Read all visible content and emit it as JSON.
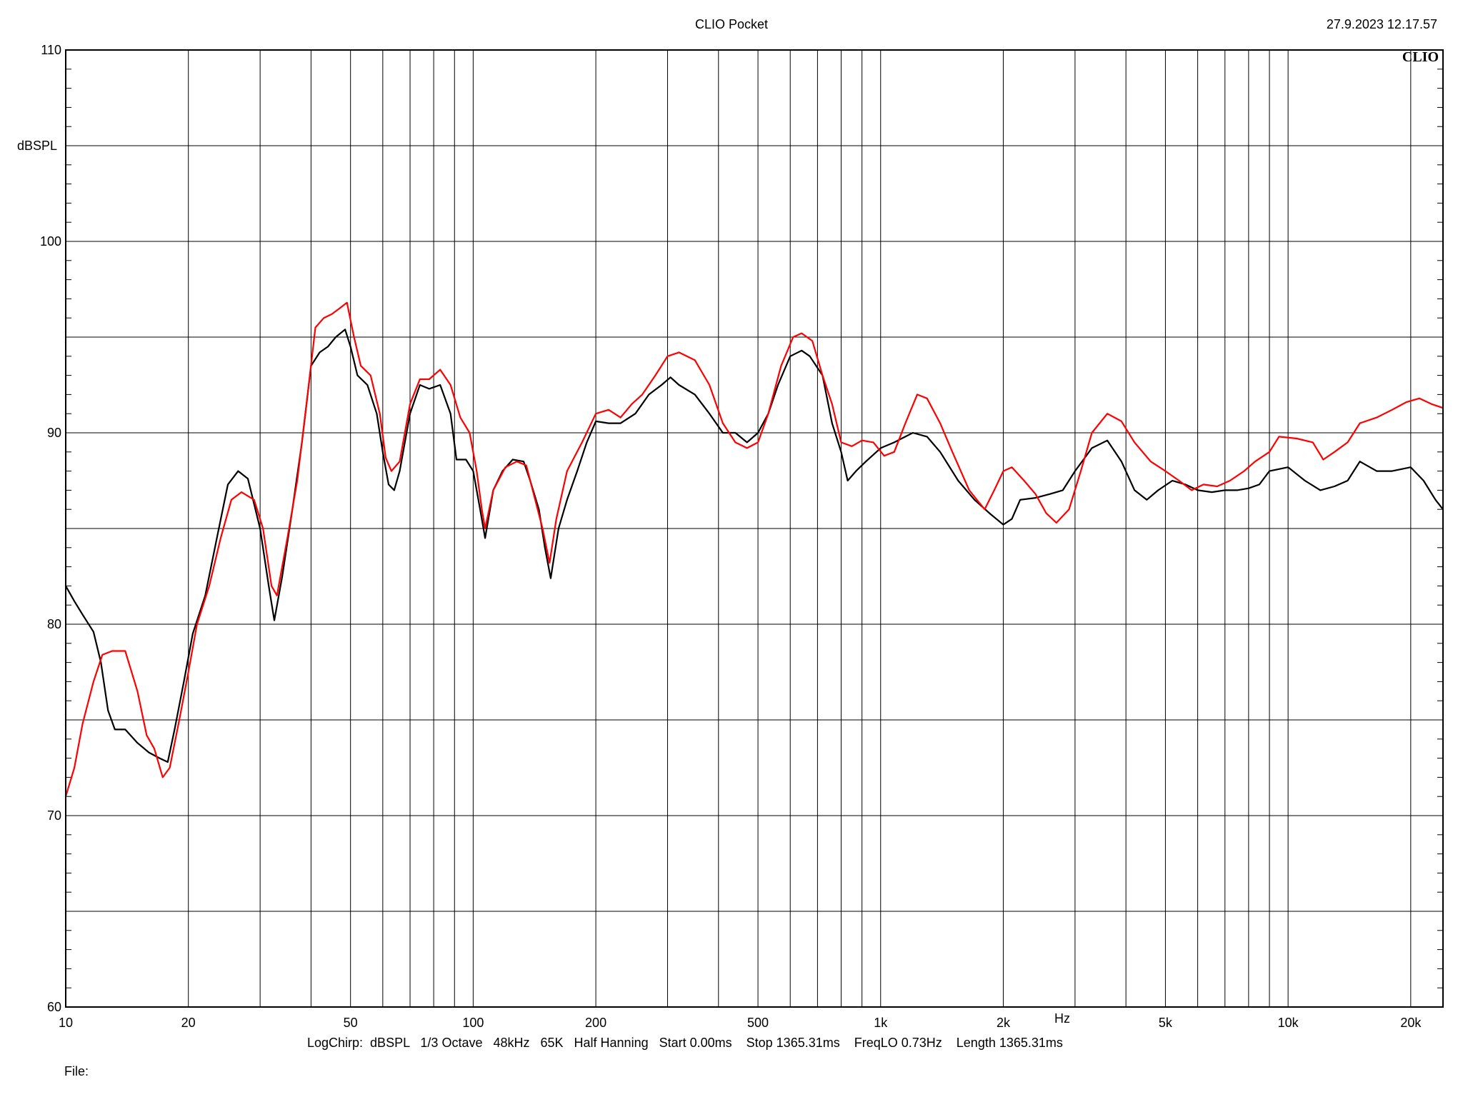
{
  "header": {
    "title": "CLIO Pocket",
    "timestamp": "27.9.2023 12.17.57",
    "logo": "CLIO"
  },
  "footer": {
    "settings": "LogChirp:  dBSPL   1/3 Octave   48kHz   65K   Half Hanning   Start 0.00ms    Stop 1365.31ms    FreqLO 0.73Hz    Length 1365.31ms",
    "file_label": "File:"
  },
  "colors": {
    "background": "#ffffff",
    "grid": "#000000",
    "series_black": "#000000",
    "series_red": "#ff0000"
  },
  "chart_data": {
    "type": "line",
    "xscale": "log",
    "xlim": [
      10,
      24000
    ],
    "ylim": [
      60,
      110
    ],
    "ylabel": "dBSPL",
    "xlabel": "Hz",
    "grid": true,
    "y_ticks": [
      "60",
      "70",
      "80",
      "90",
      "100",
      "110"
    ],
    "x_ticks": [
      {
        "value": 10,
        "label": "10"
      },
      {
        "value": 20,
        "label": "20"
      },
      {
        "value": 50,
        "label": "50"
      },
      {
        "value": 100,
        "label": "100"
      },
      {
        "value": 200,
        "label": "200"
      },
      {
        "value": 500,
        "label": "500"
      },
      {
        "value": 1000,
        "label": "1k"
      },
      {
        "value": 2000,
        "label": "2k"
      },
      {
        "value": 5000,
        "label": "5k"
      },
      {
        "value": 10000,
        "label": "10k"
      },
      {
        "value": 20000,
        "label": "20k"
      }
    ],
    "series": [
      {
        "color": "#000000",
        "points": [
          [
            10,
            82.0
          ],
          [
            10.5,
            81.2
          ],
          [
            11,
            80.5
          ],
          [
            11.7,
            79.6
          ],
          [
            12.2,
            78.0
          ],
          [
            12.7,
            75.5
          ],
          [
            13.2,
            74.5
          ],
          [
            14,
            74.5
          ],
          [
            15,
            73.8
          ],
          [
            16,
            73.3
          ],
          [
            17,
            73.0
          ],
          [
            17.8,
            72.8
          ],
          [
            18.5,
            74.5
          ],
          [
            19.5,
            77.0
          ],
          [
            20.5,
            79.5
          ],
          [
            22,
            81.5
          ],
          [
            23.5,
            84.5
          ],
          [
            25,
            87.3
          ],
          [
            26.5,
            88.0
          ],
          [
            28,
            87.6
          ],
          [
            30,
            85.0
          ],
          [
            31.5,
            82.0
          ],
          [
            32.5,
            80.2
          ],
          [
            34,
            82.5
          ],
          [
            36,
            86.0
          ],
          [
            38,
            89.5
          ],
          [
            40,
            93.5
          ],
          [
            42,
            94.2
          ],
          [
            44,
            94.5
          ],
          [
            46,
            95.0
          ],
          [
            48.5,
            95.4
          ],
          [
            50,
            94.5
          ],
          [
            52,
            93.0
          ],
          [
            55,
            92.5
          ],
          [
            58,
            91.0
          ],
          [
            60,
            89.0
          ],
          [
            62,
            87.3
          ],
          [
            64,
            87.0
          ],
          [
            66,
            88.0
          ],
          [
            70,
            91.0
          ],
          [
            74,
            92.5
          ],
          [
            78,
            92.3
          ],
          [
            83,
            92.5
          ],
          [
            88,
            91.0
          ],
          [
            91,
            88.6
          ],
          [
            96,
            88.6
          ],
          [
            100,
            88.0
          ],
          [
            104,
            86.0
          ],
          [
            107,
            84.5
          ],
          [
            112,
            87.0
          ],
          [
            118,
            88.0
          ],
          [
            125,
            88.6
          ],
          [
            133,
            88.5
          ],
          [
            138,
            87.5
          ],
          [
            145,
            86.0
          ],
          [
            150,
            84.0
          ],
          [
            155,
            82.4
          ],
          [
            162,
            85.0
          ],
          [
            170,
            86.5
          ],
          [
            180,
            88.0
          ],
          [
            190,
            89.5
          ],
          [
            200,
            90.6
          ],
          [
            215,
            90.5
          ],
          [
            230,
            90.5
          ],
          [
            250,
            91.0
          ],
          [
            270,
            92.0
          ],
          [
            290,
            92.5
          ],
          [
            305,
            92.9
          ],
          [
            320,
            92.5
          ],
          [
            350,
            92.0
          ],
          [
            380,
            91.0
          ],
          [
            410,
            90.0
          ],
          [
            440,
            90.0
          ],
          [
            470,
            89.5
          ],
          [
            500,
            90.0
          ],
          [
            530,
            91.0
          ],
          [
            560,
            92.5
          ],
          [
            600,
            94.0
          ],
          [
            640,
            94.3
          ],
          [
            670,
            94.0
          ],
          [
            720,
            93.0
          ],
          [
            760,
            90.5
          ],
          [
            800,
            89.0
          ],
          [
            830,
            87.5
          ],
          [
            870,
            88.0
          ],
          [
            920,
            88.5
          ],
          [
            1000,
            89.2
          ],
          [
            1080,
            89.5
          ],
          [
            1200,
            90.0
          ],
          [
            1300,
            89.8
          ],
          [
            1400,
            89.0
          ],
          [
            1550,
            87.5
          ],
          [
            1700,
            86.5
          ],
          [
            1850,
            85.8
          ],
          [
            2000,
            85.2
          ],
          [
            2100,
            85.5
          ],
          [
            2200,
            86.5
          ],
          [
            2400,
            86.6
          ],
          [
            2600,
            86.8
          ],
          [
            2800,
            87.0
          ],
          [
            3000,
            88.0
          ],
          [
            3300,
            89.2
          ],
          [
            3600,
            89.6
          ],
          [
            3900,
            88.5
          ],
          [
            4200,
            87.0
          ],
          [
            4500,
            86.5
          ],
          [
            4800,
            87.0
          ],
          [
            5200,
            87.5
          ],
          [
            5600,
            87.3
          ],
          [
            6000,
            87.0
          ],
          [
            6500,
            86.9
          ],
          [
            7000,
            87.0
          ],
          [
            7500,
            87.0
          ],
          [
            8000,
            87.1
          ],
          [
            8500,
            87.3
          ],
          [
            9000,
            88.0
          ],
          [
            10000,
            88.2
          ],
          [
            11000,
            87.5
          ],
          [
            12000,
            87.0
          ],
          [
            13000,
            87.2
          ],
          [
            14000,
            87.5
          ],
          [
            15000,
            88.5
          ],
          [
            16500,
            88.0
          ],
          [
            18000,
            88.0
          ],
          [
            20000,
            88.2
          ],
          [
            21500,
            87.5
          ],
          [
            23000,
            86.5
          ],
          [
            24000,
            86.0
          ]
        ]
      },
      {
        "color": "#ff0000",
        "points": [
          [
            10,
            71.0
          ],
          [
            10.5,
            72.5
          ],
          [
            11,
            74.8
          ],
          [
            11.7,
            77.0
          ],
          [
            12.3,
            78.4
          ],
          [
            13,
            78.6
          ],
          [
            14,
            78.6
          ],
          [
            15,
            76.5
          ],
          [
            15.8,
            74.2
          ],
          [
            16.5,
            73.5
          ],
          [
            17.3,
            72.0
          ],
          [
            18,
            72.5
          ],
          [
            19,
            75.0
          ],
          [
            20,
            77.5
          ],
          [
            21,
            80.0
          ],
          [
            22.5,
            82.0
          ],
          [
            24,
            84.5
          ],
          [
            25.5,
            86.5
          ],
          [
            27,
            86.9
          ],
          [
            29,
            86.5
          ],
          [
            30.5,
            85.0
          ],
          [
            32,
            82.0
          ],
          [
            33,
            81.5
          ],
          [
            35,
            84.5
          ],
          [
            37,
            87.5
          ],
          [
            39,
            91.5
          ],
          [
            41,
            95.5
          ],
          [
            43,
            96.0
          ],
          [
            45,
            96.2
          ],
          [
            47,
            96.5
          ],
          [
            49,
            96.8
          ],
          [
            51,
            95.0
          ],
          [
            53,
            93.5
          ],
          [
            56,
            93.0
          ],
          [
            59,
            91.0
          ],
          [
            61,
            88.7
          ],
          [
            63,
            88.0
          ],
          [
            66,
            88.5
          ],
          [
            70,
            91.5
          ],
          [
            74,
            92.8
          ],
          [
            78,
            92.8
          ],
          [
            83,
            93.3
          ],
          [
            88,
            92.5
          ],
          [
            93,
            90.8
          ],
          [
            98,
            90.0
          ],
          [
            102,
            88.0
          ],
          [
            105,
            86.0
          ],
          [
            107,
            85.0
          ],
          [
            112,
            87.0
          ],
          [
            120,
            88.2
          ],
          [
            128,
            88.5
          ],
          [
            135,
            88.3
          ],
          [
            142,
            86.5
          ],
          [
            148,
            85.0
          ],
          [
            154,
            83.2
          ],
          [
            160,
            85.5
          ],
          [
            170,
            88.0
          ],
          [
            185,
            89.5
          ],
          [
            200,
            91.0
          ],
          [
            215,
            91.2
          ],
          [
            230,
            90.8
          ],
          [
            245,
            91.5
          ],
          [
            260,
            92.0
          ],
          [
            280,
            93.0
          ],
          [
            300,
            94.0
          ],
          [
            320,
            94.2
          ],
          [
            350,
            93.8
          ],
          [
            380,
            92.5
          ],
          [
            410,
            90.5
          ],
          [
            440,
            89.5
          ],
          [
            470,
            89.2
          ],
          [
            500,
            89.5
          ],
          [
            530,
            91.0
          ],
          [
            570,
            93.5
          ],
          [
            610,
            95.0
          ],
          [
            640,
            95.2
          ],
          [
            680,
            94.8
          ],
          [
            720,
            93.0
          ],
          [
            760,
            91.5
          ],
          [
            800,
            89.5
          ],
          [
            850,
            89.3
          ],
          [
            900,
            89.6
          ],
          [
            960,
            89.5
          ],
          [
            1020,
            88.8
          ],
          [
            1080,
            89.0
          ],
          [
            1150,
            90.5
          ],
          [
            1230,
            92.0
          ],
          [
            1300,
            91.8
          ],
          [
            1400,
            90.5
          ],
          [
            1500,
            89.0
          ],
          [
            1650,
            87.0
          ],
          [
            1800,
            86.0
          ],
          [
            1900,
            87.0
          ],
          [
            2000,
            88.0
          ],
          [
            2100,
            88.2
          ],
          [
            2250,
            87.5
          ],
          [
            2400,
            86.8
          ],
          [
            2550,
            85.8
          ],
          [
            2700,
            85.3
          ],
          [
            2900,
            86.0
          ],
          [
            3100,
            88.0
          ],
          [
            3300,
            90.0
          ],
          [
            3600,
            91.0
          ],
          [
            3900,
            90.6
          ],
          [
            4200,
            89.5
          ],
          [
            4600,
            88.5
          ],
          [
            5000,
            88.0
          ],
          [
            5400,
            87.5
          ],
          [
            5800,
            87.0
          ],
          [
            6200,
            87.3
          ],
          [
            6700,
            87.2
          ],
          [
            7200,
            87.5
          ],
          [
            7800,
            88.0
          ],
          [
            8300,
            88.5
          ],
          [
            9000,
            89.0
          ],
          [
            9500,
            89.8
          ],
          [
            10500,
            89.7
          ],
          [
            11500,
            89.5
          ],
          [
            12200,
            88.6
          ],
          [
            13000,
            89.0
          ],
          [
            14000,
            89.5
          ],
          [
            15000,
            90.5
          ],
          [
            16500,
            90.8
          ],
          [
            18000,
            91.2
          ],
          [
            19500,
            91.6
          ],
          [
            21000,
            91.8
          ],
          [
            22500,
            91.5
          ],
          [
            24000,
            91.3
          ]
        ]
      }
    ]
  }
}
